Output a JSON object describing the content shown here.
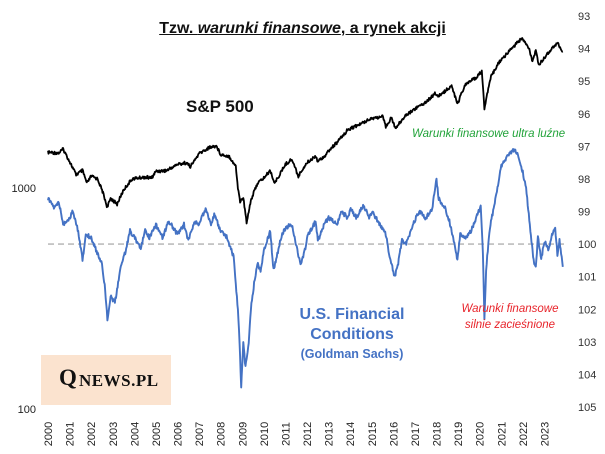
{
  "chart_data": {
    "type": "line",
    "title_parts": {
      "prefix": "Tzw. ",
      "italic": "warunki finansowe",
      "suffix": ", a rynek akcji"
    },
    "x_ticks": [
      "2000",
      "2001",
      "2002",
      "2003",
      "2004",
      "2005",
      "2006",
      "2007",
      "2008",
      "2009",
      "2010",
      "2011",
      "2012",
      "2013",
      "2014",
      "2015",
      "2016",
      "2017",
      "2018",
      "2019",
      "2020",
      "2021",
      "2022",
      "2023"
    ],
    "xlim": [
      2000,
      2024
    ],
    "left_axis": {
      "scale": "log",
      "ticks": [
        "1000",
        "100"
      ],
      "ylim": [
        100,
        4800
      ]
    },
    "right_axis": {
      "inverted": true,
      "ticks": [
        "93",
        "94",
        "95",
        "96",
        "97",
        "98",
        "99",
        "100",
        "101",
        "102",
        "103",
        "104",
        "105"
      ],
      "ylim": [
        93,
        105
      ]
    },
    "reference_line": {
      "axis": "right",
      "value": 100,
      "style": "dashed"
    },
    "series": [
      {
        "name": "S&P 500",
        "axis": "left",
        "color": "#000000",
        "points": [
          [
            2000,
            1450
          ],
          [
            2000.5,
            1440
          ],
          [
            2000.7,
            1500
          ],
          [
            2001,
            1320
          ],
          [
            2001.3,
            1150
          ],
          [
            2001.6,
            1200
          ],
          [
            2001.8,
            1050
          ],
          [
            2002,
            1130
          ],
          [
            2002.3,
            1100
          ],
          [
            2002.55,
            950
          ],
          [
            2002.75,
            815
          ],
          [
            2002.9,
            900
          ],
          [
            2003.2,
            845
          ],
          [
            2003.5,
            980
          ],
          [
            2003.9,
            1100
          ],
          [
            2004.5,
            1120
          ],
          [
            2004.8,
            1110
          ],
          [
            2005,
            1190
          ],
          [
            2005.5,
            1200
          ],
          [
            2006,
            1280
          ],
          [
            2006.4,
            1300
          ],
          [
            2006.6,
            1250
          ],
          [
            2007,
            1430
          ],
          [
            2007.5,
            1530
          ],
          [
            2007.8,
            1550
          ],
          [
            2008,
            1420
          ],
          [
            2008.4,
            1390
          ],
          [
            2008.7,
            1250
          ],
          [
            2008.8,
            1000
          ],
          [
            2008.9,
            870
          ],
          [
            2009.05,
            900
          ],
          [
            2009.2,
            700
          ],
          [
            2009.4,
            880
          ],
          [
            2009.7,
            1050
          ],
          [
            2010,
            1110
          ],
          [
            2010.3,
            1200
          ],
          [
            2010.5,
            1050
          ],
          [
            2010.8,
            1180
          ],
          [
            2011,
            1280
          ],
          [
            2011.3,
            1350
          ],
          [
            2011.6,
            1130
          ],
          [
            2011.8,
            1220
          ],
          [
            2012,
            1300
          ],
          [
            2012.4,
            1400
          ],
          [
            2012.5,
            1320
          ],
          [
            2012.9,
            1420
          ],
          [
            2013,
            1470
          ],
          [
            2013.5,
            1650
          ],
          [
            2013.9,
            1840
          ],
          [
            2014.5,
            1950
          ],
          [
            2014.9,
            2060
          ],
          [
            2015.5,
            2100
          ],
          [
            2015.65,
            1900
          ],
          [
            2015.9,
            2080
          ],
          [
            2016.1,
            1860
          ],
          [
            2016.5,
            2100
          ],
          [
            2016.9,
            2250
          ],
          [
            2017.5,
            2450
          ],
          [
            2017.95,
            2680
          ],
          [
            2018.1,
            2600
          ],
          [
            2018.7,
            2900
          ],
          [
            2018.97,
            2400
          ],
          [
            2019.3,
            2900
          ],
          [
            2019.9,
            3200
          ],
          [
            2020.1,
            3380
          ],
          [
            2020.22,
            2300
          ],
          [
            2020.5,
            3150
          ],
          [
            2020.9,
            3700
          ],
          [
            2021.5,
            4300
          ],
          [
            2021.95,
            4750
          ],
          [
            2022.3,
            4250
          ],
          [
            2022.45,
            3700
          ],
          [
            2022.6,
            4200
          ],
          [
            2022.75,
            3600
          ],
          [
            2023,
            3900
          ],
          [
            2023.5,
            4450
          ],
          [
            2023.6,
            4550
          ],
          [
            2023.8,
            4200
          ],
          [
            2023.85,
            4150
          ]
        ]
      },
      {
        "name": "U.S. Financial Conditions",
        "subname": "(Goldman Sachs)",
        "axis": "right",
        "color": "#4472c4",
        "points": [
          [
            2000,
            98.6
          ],
          [
            2000.3,
            98.9
          ],
          [
            2000.5,
            98.7
          ],
          [
            2000.7,
            99.4
          ],
          [
            2001,
            99.2
          ],
          [
            2001.15,
            99.0
          ],
          [
            2001.4,
            99.6
          ],
          [
            2001.6,
            100.5
          ],
          [
            2001.75,
            99.7
          ],
          [
            2002,
            99.8
          ],
          [
            2002.3,
            100.3
          ],
          [
            2002.5,
            100.6
          ],
          [
            2002.65,
            101.4
          ],
          [
            2002.75,
            102.3
          ],
          [
            2002.9,
            101.6
          ],
          [
            2003.1,
            101.8
          ],
          [
            2003.2,
            101.4
          ],
          [
            2003.4,
            100.6
          ],
          [
            2003.6,
            100.2
          ],
          [
            2003.8,
            99.6
          ],
          [
            2004,
            99.8
          ],
          [
            2004.3,
            100.1
          ],
          [
            2004.5,
            99.6
          ],
          [
            2004.7,
            99.8
          ],
          [
            2005,
            99.4
          ],
          [
            2005.3,
            99.8
          ],
          [
            2005.6,
            99.3
          ],
          [
            2006,
            99.7
          ],
          [
            2006.3,
            99.4
          ],
          [
            2006.5,
            99.9
          ],
          [
            2006.8,
            99.3
          ],
          [
            2007,
            99.4
          ],
          [
            2007.3,
            98.9
          ],
          [
            2007.55,
            99.4
          ],
          [
            2007.7,
            99.1
          ],
          [
            2008,
            99.6
          ],
          [
            2008.3,
            99.8
          ],
          [
            2008.6,
            100.4
          ],
          [
            2008.8,
            102.0
          ],
          [
            2008.9,
            103.4
          ],
          [
            2008.95,
            104.4
          ],
          [
            2009.05,
            103.0
          ],
          [
            2009.15,
            103.8
          ],
          [
            2009.3,
            103.0
          ],
          [
            2009.4,
            102.0
          ],
          [
            2009.55,
            101.2
          ],
          [
            2009.7,
            100.6
          ],
          [
            2009.85,
            100.8
          ],
          [
            2010,
            100.2
          ],
          [
            2010.3,
            99.6
          ],
          [
            2010.45,
            100.8
          ],
          [
            2010.6,
            100.4
          ],
          [
            2010.8,
            99.8
          ],
          [
            2011,
            99.5
          ],
          [
            2011.3,
            99.4
          ],
          [
            2011.55,
            100.2
          ],
          [
            2011.7,
            100.6
          ],
          [
            2011.9,
            100.2
          ],
          [
            2012,
            99.8
          ],
          [
            2012.4,
            99.3
          ],
          [
            2012.5,
            99.9
          ],
          [
            2012.8,
            99.4
          ],
          [
            2013,
            99.2
          ],
          [
            2013.4,
            99.4
          ],
          [
            2013.6,
            99.0
          ],
          [
            2013.9,
            99.2
          ],
          [
            2014,
            98.9
          ],
          [
            2014.3,
            99.2
          ],
          [
            2014.6,
            98.8
          ],
          [
            2014.9,
            99.2
          ],
          [
            2015,
            99.0
          ],
          [
            2015.3,
            99.3
          ],
          [
            2015.65,
            99.7
          ],
          [
            2015.8,
            100.3
          ],
          [
            2016.05,
            101.0
          ],
          [
            2016.2,
            100.7
          ],
          [
            2016.4,
            99.9
          ],
          [
            2016.6,
            100.0
          ],
          [
            2016.9,
            99.4
          ],
          [
            2017.2,
            99.0
          ],
          [
            2017.5,
            99.2
          ],
          [
            2017.8,
            98.9
          ],
          [
            2018,
            98.0
          ],
          [
            2018.1,
            98.6
          ],
          [
            2018.4,
            98.9
          ],
          [
            2018.6,
            99.3
          ],
          [
            2018.8,
            99.9
          ],
          [
            2018.97,
            100.5
          ],
          [
            2019.1,
            99.7
          ],
          [
            2019.4,
            99.8
          ],
          [
            2019.6,
            99.6
          ],
          [
            2019.9,
            99.1
          ],
          [
            2020.05,
            98.8
          ],
          [
            2020.15,
            100.3
          ],
          [
            2020.22,
            102.3
          ],
          [
            2020.3,
            100.8
          ],
          [
            2020.45,
            99.6
          ],
          [
            2020.7,
            98.7
          ],
          [
            2020.9,
            98.0
          ],
          [
            2021,
            97.6
          ],
          [
            2021.3,
            97.3
          ],
          [
            2021.6,
            97.1
          ],
          [
            2021.8,
            97.3
          ],
          [
            2022,
            97.8
          ],
          [
            2022.15,
            98.3
          ],
          [
            2022.35,
            99.6
          ],
          [
            2022.5,
            100.5
          ],
          [
            2022.6,
            100.7
          ],
          [
            2022.7,
            99.8
          ],
          [
            2022.85,
            100.5
          ],
          [
            2023,
            99.9
          ],
          [
            2023.2,
            100.2
          ],
          [
            2023.35,
            99.7
          ],
          [
            2023.5,
            99.5
          ],
          [
            2023.6,
            100.3
          ],
          [
            2023.7,
            99.9
          ],
          [
            2023.8,
            100.4
          ],
          [
            2023.85,
            100.7
          ]
        ]
      }
    ],
    "annotations": {
      "sp500_label": "S&P 500",
      "fc_label_line1": "U.S. Financial",
      "fc_label_line2": "Conditions",
      "fc_label_line3": "(Goldman Sachs)",
      "loose_label": "Warunki finansowe ultra luźne",
      "tight_label_line1": "Warunki finansowe",
      "tight_label_line2": "silnie zacieśnione"
    },
    "colors": {
      "sp500": "#000000",
      "fci": "#4472c4",
      "loose": "#22a33a",
      "tight": "#e8232a",
      "refline": "#b0b0b0"
    }
  },
  "logo": {
    "big_letter": "Q",
    "rest": "NEWS.PL"
  }
}
